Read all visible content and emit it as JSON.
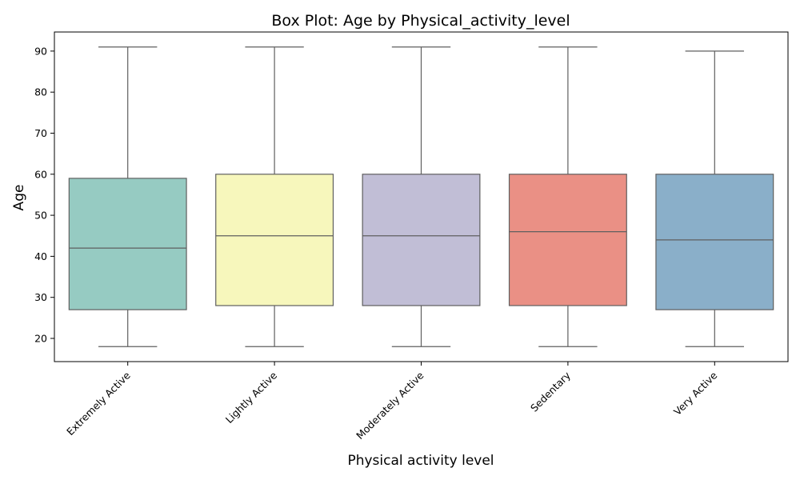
{
  "chart_data": {
    "type": "box",
    "title": "Box Plot: Age by Physical_activity_level",
    "xlabel": "Physical activity level",
    "ylabel": "Age",
    "ylim": [
      14.35,
      94.65
    ],
    "yticks": [
      20,
      30,
      40,
      50,
      60,
      70,
      80,
      90
    ],
    "grid": false,
    "categories": [
      "Extremely Active",
      "Lightly Active",
      "Moderately Active",
      "Sedentary",
      "Very Active"
    ],
    "boxes": [
      {
        "category": "Extremely Active",
        "min": 18,
        "q1": 27,
        "median": 42,
        "q3": 59,
        "max": 91,
        "color": "#96cbc2"
      },
      {
        "category": "Lightly Active",
        "min": 18,
        "q1": 28,
        "median": 45,
        "q3": 60,
        "max": 91,
        "color": "#f7f7bc"
      },
      {
        "category": "Moderately Active",
        "min": 18,
        "q1": 28,
        "median": 45,
        "q3": 60,
        "max": 91,
        "color": "#c1bed6"
      },
      {
        "category": "Sedentary",
        "min": 18,
        "q1": 28,
        "median": 46,
        "q3": 60,
        "max": 91,
        "color": "#ea9085"
      },
      {
        "category": "Very Active",
        "min": 18,
        "q1": 27,
        "median": 44,
        "q3": 60,
        "max": 90,
        "color": "#8aafc9"
      }
    ]
  }
}
